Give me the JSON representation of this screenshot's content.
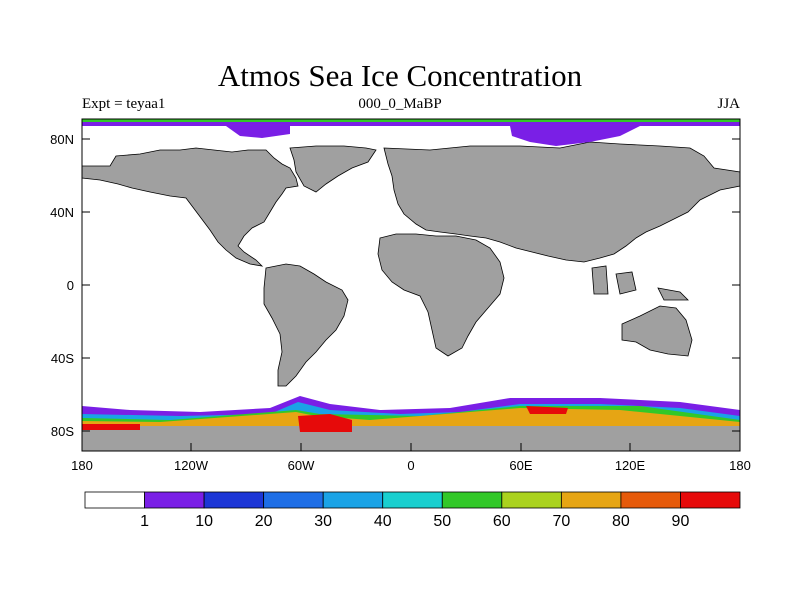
{
  "header": {
    "title": "Atmos Sea Ice Concentration",
    "left": "Expt = teyaa1",
    "center": "000_0_MaBP",
    "right": "JJA"
  },
  "axes": {
    "y_labels": [
      "80N",
      "40N",
      "0",
      "40S",
      "80S"
    ],
    "x_labels": [
      "180",
      "120W",
      "60W",
      "0",
      "60E",
      "120E",
      "180"
    ]
  },
  "colorbar": {
    "levels": [
      "1",
      "10",
      "20",
      "30",
      "40",
      "50",
      "60",
      "70",
      "80",
      "90"
    ],
    "colors": [
      "#ffffff",
      "#7a1fe6",
      "#1c36d6",
      "#1e6ee6",
      "#1aa3e6",
      "#19cfcf",
      "#32c828",
      "#aad21e",
      "#e6a514",
      "#e65a0a",
      "#e60a0a"
    ]
  },
  "colors": {
    "land": "#a0a0a0",
    "ocean": "#ffffff"
  }
}
